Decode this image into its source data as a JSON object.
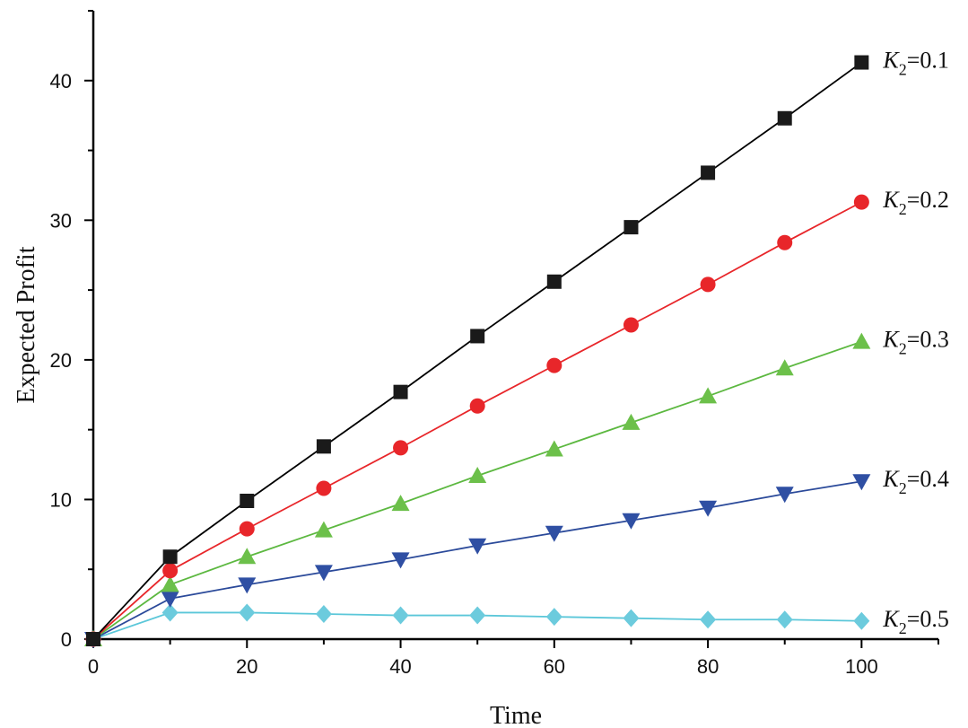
{
  "chart_data": {
    "type": "line",
    "title": "",
    "xlabel": "Time",
    "ylabel": "Expected Profit",
    "xlim": [
      0,
      110
    ],
    "ylim": [
      0,
      45
    ],
    "xticks": [
      0,
      20,
      40,
      60,
      80,
      100
    ],
    "yticks": [
      0,
      10,
      20,
      30,
      40
    ],
    "grid": false,
    "x": [
      0,
      10,
      20,
      30,
      40,
      50,
      60,
      70,
      80,
      90,
      100
    ],
    "series": [
      {
        "label_prefix": "K",
        "label_sub": "2",
        "label_suffix": "=0.1",
        "color": "#000000",
        "marker_color": "#1a1a1a",
        "marker": "square",
        "values": [
          0,
          5.9,
          9.9,
          13.8,
          17.7,
          21.7,
          25.6,
          29.5,
          33.4,
          37.3,
          41.3
        ]
      },
      {
        "label_prefix": "K",
        "label_sub": "2",
        "label_suffix": "=0.2",
        "color": "#e8262a",
        "marker_color": "#e8262a",
        "marker": "circle",
        "values": [
          0,
          4.9,
          7.9,
          10.8,
          13.7,
          16.7,
          19.6,
          22.5,
          25.4,
          28.4,
          31.3
        ]
      },
      {
        "label_prefix": "K",
        "label_sub": "2",
        "label_suffix": "=0.3",
        "color": "#5cb840",
        "marker_color": "#6cc04a",
        "marker": "triangle-up",
        "values": [
          0,
          3.9,
          5.9,
          7.8,
          9.7,
          11.7,
          13.6,
          15.5,
          17.4,
          19.4,
          21.3
        ]
      },
      {
        "label_prefix": "K",
        "label_sub": "2",
        "label_suffix": "=0.4",
        "color": "#2b4a9a",
        "marker_color": "#2f4fa3",
        "marker": "triangle-down",
        "values": [
          0,
          2.9,
          3.9,
          4.8,
          5.7,
          6.7,
          7.6,
          8.5,
          9.4,
          10.4,
          11.3
        ]
      },
      {
        "label_prefix": "K",
        "label_sub": "2",
        "label_suffix": "=0.5",
        "color": "#5bc7d9",
        "marker_color": "#6ccbdd",
        "marker": "diamond",
        "values": [
          0,
          1.9,
          1.9,
          1.8,
          1.7,
          1.7,
          1.6,
          1.5,
          1.4,
          1.4,
          1.3
        ]
      }
    ]
  }
}
